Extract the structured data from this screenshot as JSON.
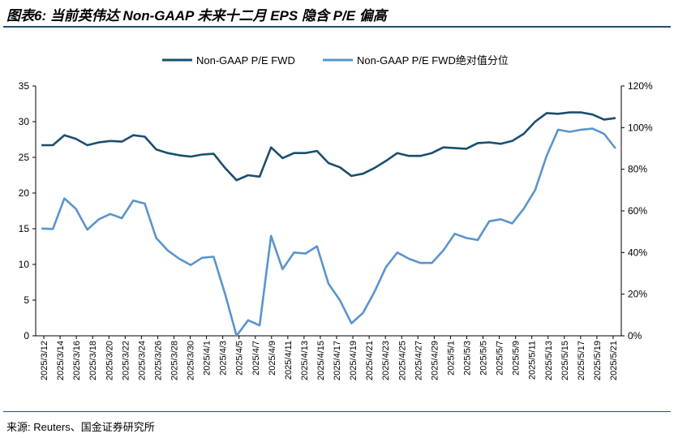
{
  "title": "图表6: 当前英伟达 Non-GAAP 未来十二月 EPS 隐含 P/E 偏高",
  "source": "来源: Reuters、国金证券研究所",
  "colors": {
    "series1": "#1b4e6e",
    "series2": "#5b94cc",
    "rule": "#1f4e79"
  },
  "chart_data": {
    "type": "line",
    "x": [
      "2025/3/12",
      "2025/3/13",
      "2025/3/14",
      "2025/3/17",
      "2025/3/18",
      "2025/3/19",
      "2025/3/20",
      "2025/3/21",
      "2025/3/24",
      "2025/3/25",
      "2025/3/26",
      "2025/3/27",
      "2025/3/28",
      "2025/3/31",
      "2025/4/1",
      "2025/4/2",
      "2025/4/3",
      "2025/4/4",
      "2025/4/7",
      "2025/4/8",
      "2025/4/9",
      "2025/4/10",
      "2025/4/11",
      "2025/4/14",
      "2025/4/15",
      "2025/4/16",
      "2025/4/17",
      "2025/4/21",
      "2025/4/22",
      "2025/4/23",
      "2025/4/24",
      "2025/4/25",
      "2025/4/28",
      "2025/4/29",
      "2025/4/30",
      "2025/5/1",
      "2025/5/2",
      "2025/5/5",
      "2025/5/6",
      "2025/5/7",
      "2025/5/8",
      "2025/5/9",
      "2025/5/12",
      "2025/5/13",
      "2025/5/14",
      "2025/5/15",
      "2025/5/16",
      "2025/5/19",
      "2025/5/20",
      "2025/5/21",
      "2025/5/22"
    ],
    "x_tick_labels": [
      "2025/3/12",
      "2025/3/14",
      "2025/3/16",
      "2025/3/18",
      "2025/3/20",
      "2025/3/22",
      "2025/3/24",
      "2025/3/26",
      "2025/3/28",
      "2025/3/30",
      "2025/4/1",
      "2025/4/3",
      "2025/4/5",
      "2025/4/7",
      "2025/4/9",
      "2025/4/11",
      "2025/4/13",
      "2025/4/15",
      "2025/4/17",
      "2025/4/19",
      "2025/4/21",
      "2025/4/23",
      "2025/4/25",
      "2025/4/27",
      "2025/4/29",
      "2025/5/1",
      "2025/5/3",
      "2025/5/5",
      "2025/5/7",
      "2025/5/9",
      "2025/5/11",
      "2025/5/13",
      "2025/5/15",
      "2025/5/17",
      "2025/5/19",
      "2025/5/21"
    ],
    "y_left": {
      "ticks": [
        0,
        5,
        10,
        15,
        20,
        25,
        30,
        35
      ],
      "ylim": [
        0,
        35
      ]
    },
    "y_right": {
      "ticks": [
        "0%",
        "20%",
        "40%",
        "60%",
        "80%",
        "100%",
        "120%"
      ],
      "ylim": [
        0,
        120
      ]
    },
    "legend_position": "top-center",
    "series": [
      {
        "name": "Non-GAAP P/E FWD",
        "axis": "left",
        "values": [
          26.7,
          26.7,
          28.1,
          27.6,
          26.7,
          27.1,
          27.3,
          27.2,
          28.1,
          27.9,
          26.1,
          25.6,
          25.3,
          25.1,
          25.4,
          25.5,
          23.5,
          21.8,
          22.5,
          22.3,
          26.4,
          24.9,
          25.6,
          25.6,
          25.9,
          24.2,
          23.6,
          22.4,
          22.7,
          23.5,
          24.5,
          25.6,
          25.2,
          25.2,
          25.6,
          26.4,
          26.3,
          26.2,
          27.0,
          27.1,
          26.9,
          27.3,
          28.3,
          30.0,
          31.2,
          31.1,
          31.3,
          31.3,
          31.0,
          30.3,
          30.5
        ]
      },
      {
        "name": "Non-GAAP P/E FWD绝对值分位",
        "axis": "right",
        "values": [
          51.5,
          51.3,
          66,
          61,
          51,
          56,
          58.5,
          56.5,
          65,
          63.5,
          47,
          41,
          37,
          34,
          37.5,
          38,
          20,
          0,
          7.5,
          5,
          48,
          32,
          40,
          39.5,
          43,
          25,
          17,
          6,
          11,
          21,
          33,
          40,
          37,
          35,
          35,
          41,
          49,
          47,
          46,
          55,
          56,
          54,
          61,
          70,
          86.5,
          99,
          98,
          99,
          99.5,
          97,
          90
        ]
      }
    ]
  }
}
